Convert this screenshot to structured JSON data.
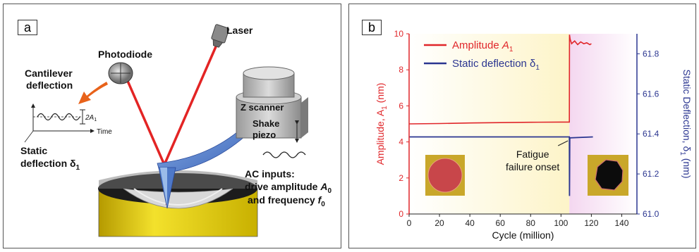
{
  "panel_a": {
    "tag": "a",
    "labels": {
      "photodiode": "Photodiode",
      "laser": "Laser",
      "cantilever_1": "Cantilever",
      "cantilever_2": "deflection",
      "amp_label": "2A",
      "amp_sub": "1",
      "time": "Time",
      "static_1": "Static",
      "static_2": "deflection δ",
      "static_sub": "1",
      "z_scanner": "Z scanner",
      "shake_1": "Shake",
      "shake_2": "piezo",
      "ac_1": "AC inputs:",
      "ac_2_prefix": "drive amplitude ",
      "ac_2_var": "A",
      "ac_2_sub": "0",
      "ac_3_prefix": "and frequency ",
      "ac_3_var": "f",
      "ac_3_sub": "0"
    }
  },
  "panel_b": {
    "tag": "b",
    "legend": {
      "amplitude_prefix": "Amplitude ",
      "amplitude_var": "A",
      "amplitude_sub": "1",
      "static_prefix": "Static deflection δ",
      "static_sub": "1"
    },
    "annotation_1": "Fatigue",
    "annotation_2": "failure onset",
    "y_left_label": "Amplitude, A",
    "y_left_sub": "1",
    "y_left_unit": " (nm)",
    "y_right_label": "Static Deflection, δ",
    "y_right_sub": "1",
    "y_right_unit": " (nm)",
    "colors": {
      "amplitude": "#e0262a",
      "static": "#2a3590"
    }
  },
  "chart_data": {
    "type": "line",
    "xlabel": "Cycle (million)",
    "ylabel": "Amplitude, A1 (nm)",
    "y2label": "Static Deflection, δ1 (nm)",
    "xlim": [
      0,
      150
    ],
    "ylim": [
      0,
      10
    ],
    "y2lim": [
      61.0,
      61.9
    ],
    "x_ticks": [
      0,
      20,
      40,
      60,
      80,
      100,
      120,
      140
    ],
    "y_ticks": [
      0,
      2,
      4,
      6,
      8,
      10
    ],
    "y2_ticks": [
      61.0,
      61.2,
      61.4,
      61.6,
      61.8
    ],
    "y2_tick_labels": [
      "61.0",
      "61.2",
      "61.4",
      "61.6",
      "61.8"
    ],
    "series": [
      {
        "name": "Amplitude A1",
        "axis": "left",
        "color": "#e0262a",
        "points": [
          [
            0,
            5.0
          ],
          [
            20,
            5.02
          ],
          [
            40,
            5.05
          ],
          [
            60,
            5.07
          ],
          [
            80,
            5.09
          ],
          [
            100,
            5.1
          ],
          [
            105.5,
            5.1
          ],
          [
            105.6,
            9.95
          ],
          [
            106,
            9.7
          ],
          [
            107,
            9.45
          ],
          [
            109,
            9.6
          ],
          [
            111,
            9.4
          ],
          [
            113,
            9.55
          ],
          [
            115,
            9.45
          ],
          [
            117,
            9.5
          ],
          [
            119,
            9.4
          ],
          [
            120,
            9.45
          ]
        ]
      },
      {
        "name": "Static deflection δ1",
        "axis": "right",
        "color": "#2a3590",
        "points": [
          [
            0,
            61.385
          ],
          [
            105.5,
            61.385
          ],
          [
            105.6,
            61.09
          ],
          [
            105.8,
            61.38
          ],
          [
            121,
            61.385
          ]
        ]
      }
    ],
    "annotations": [
      {
        "text": "Fatigue failure onset",
        "x": 105.5
      }
    ],
    "shaded_regions": [
      {
        "x": [
          0,
          105.5
        ],
        "color": "#fdf4c8"
      },
      {
        "x": [
          105.5,
          150
        ],
        "color": "#f4d7f0"
      }
    ]
  }
}
